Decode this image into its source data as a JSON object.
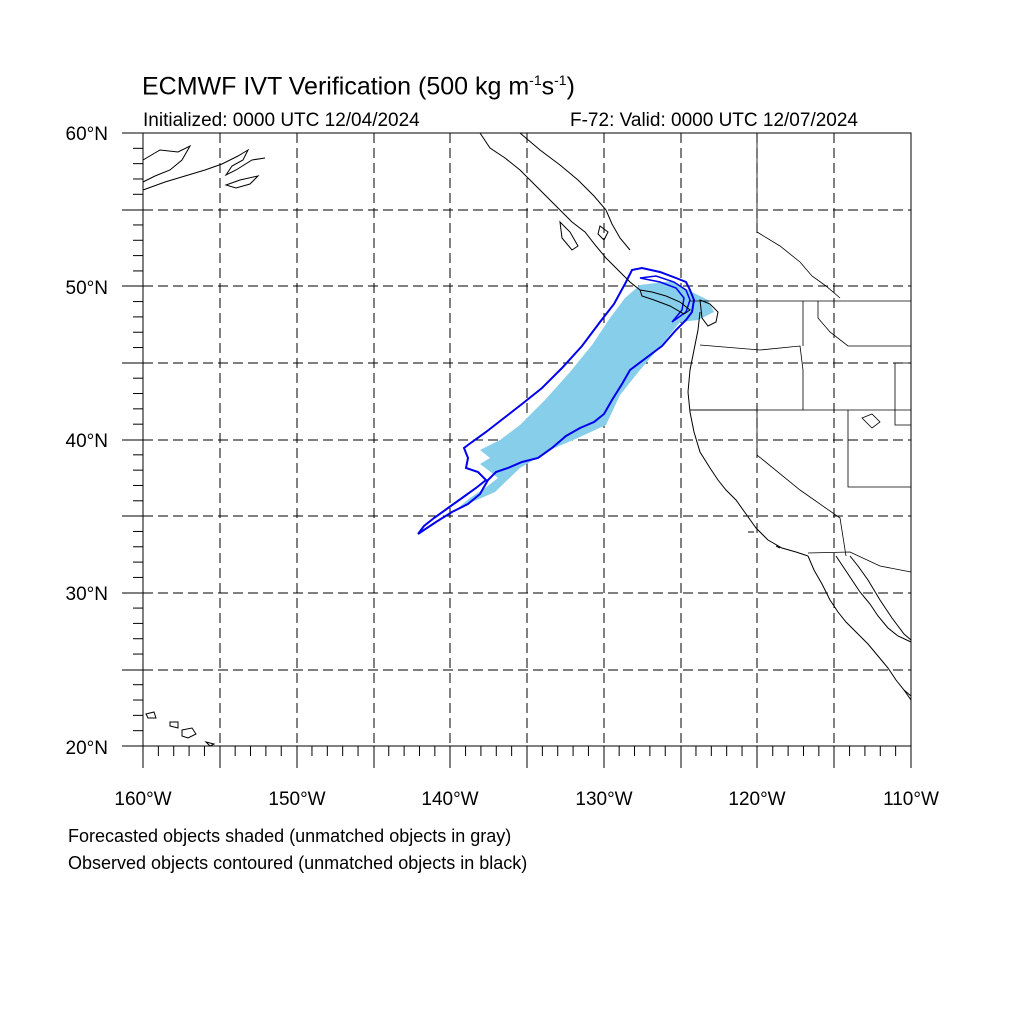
{
  "title": {
    "prefix": "ECMWF IVT Verification (500 kg m",
    "exp1": "-1",
    "mid": "s",
    "exp2": "-1",
    "suffix": ")"
  },
  "subtitle_left": "Initialized: 0000 UTC 12/04/2024",
  "subtitle_right": "F-72: Valid: 0000 UTC 12/07/2024",
  "lat_labels": [
    "60°N",
    "50°N",
    "40°N",
    "30°N",
    "20°N"
  ],
  "lon_labels": [
    "160°W",
    "150°W",
    "140°W",
    "130°W",
    "120°W",
    "110°W"
  ],
  "captions": [
    "Forecasted objects shaded (unmatched objects in gray)",
    "Observed objects contoured (unmatched objects in black)"
  ],
  "colors": {
    "forecast_fill": "#87ceeb",
    "observed_contour": "#0000ee",
    "coastline": "#000000",
    "grid": "#000000"
  },
  "map_extent": {
    "lon_min": -160,
    "lon_max": -110,
    "lat_min": 20,
    "lat_max": 60
  }
}
